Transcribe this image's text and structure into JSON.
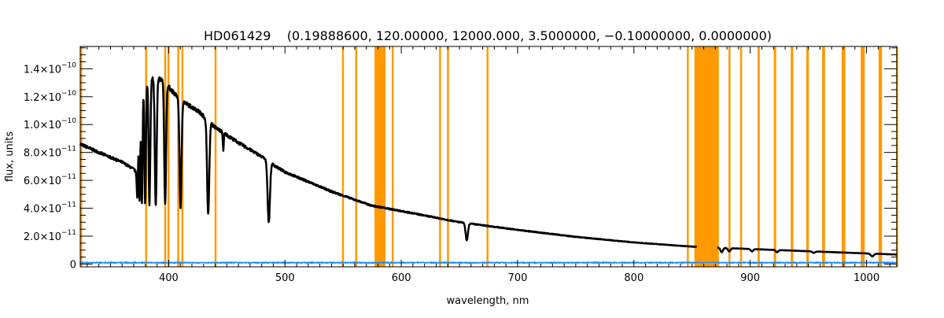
{
  "chart_data": {
    "type": "line",
    "title": "HD061429    (0.19888600, 120.00000, 12000.000, 3.5000000, −0.10000000, 0.0000000)",
    "xlabel": "wavelength, nm",
    "ylabel": "flux, units",
    "xlim": [
      324,
      1026
    ],
    "ylim": [
      -2e-12,
      1.56e-10
    ],
    "x_ticks": [
      400,
      500,
      600,
      700,
      800,
      900,
      1000
    ],
    "x_tick_labels": [
      "400",
      "500",
      "600",
      "700",
      "800",
      "900",
      "1000"
    ],
    "y_ticks": [
      0,
      2e-11,
      4e-11,
      6e-11,
      8e-11,
      1e-10,
      1.2e-10,
      1.4e-10
    ],
    "y_tick_labels": [
      {
        "mant": "0",
        "exp": ""
      },
      {
        "mant": "2.0×10",
        "exp": "−11"
      },
      {
        "mant": "4.0×10",
        "exp": "−11"
      },
      {
        "mant": "6.0×10",
        "exp": "−11"
      },
      {
        "mant": "8.0×10",
        "exp": "−11"
      },
      {
        "mant": "1.0×10",
        "exp": "−10"
      },
      {
        "mant": "1.2×10",
        "exp": "−10"
      },
      {
        "mant": "1.4×10",
        "exp": "−10"
      }
    ],
    "grid": false,
    "colors": {
      "spectrum": "#000000",
      "error": "#1a8cff",
      "mask": "#ff9900"
    },
    "continuum_1e-11": [
      [
        324,
        8.6
      ],
      [
        340,
        8.0
      ],
      [
        360,
        7.3
      ],
      [
        370,
        6.8
      ],
      [
        372,
        6.6
      ],
      [
        378,
        12.8
      ],
      [
        385,
        13.3
      ],
      [
        395,
        13.2
      ],
      [
        405,
        12.2
      ],
      [
        415,
        11.5
      ],
      [
        425,
        11.0
      ],
      [
        440,
        9.8
      ],
      [
        460,
        8.7
      ],
      [
        480,
        7.7
      ],
      [
        492,
        7.0
      ],
      [
        500,
        6.6
      ],
      [
        540,
        5.2
      ],
      [
        574,
        4.2
      ],
      [
        600,
        3.8
      ],
      [
        650,
        3.0
      ],
      [
        700,
        2.45
      ],
      [
        750,
        1.95
      ],
      [
        800,
        1.55
      ],
      [
        850,
        1.25
      ],
      [
        900,
        1.08
      ],
      [
        950,
        0.92
      ],
      [
        1000,
        0.76
      ],
      [
        1026,
        0.68
      ]
    ],
    "absorption_lines_1e-11": [
      [
        373,
        4.8,
        0.7
      ],
      [
        375,
        4.5,
        0.7
      ],
      [
        377,
        4.4,
        0.8
      ],
      [
        379.8,
        4.3,
        0.9
      ],
      [
        383.5,
        4.2,
        1.0
      ],
      [
        388.9,
        4.2,
        1.1
      ],
      [
        397,
        4.3,
        1.1
      ],
      [
        410.2,
        4.0,
        1.2
      ],
      [
        434,
        3.6,
        1.3
      ],
      [
        447,
        8.2,
        0.6
      ],
      [
        486.1,
        3.0,
        1.4
      ],
      [
        656.3,
        1.7,
        1.4
      ],
      [
        875.5,
        0.85,
        1.5
      ],
      [
        882,
        0.9,
        1.5
      ],
      [
        901.5,
        0.9,
        1.5
      ],
      [
        923,
        0.85,
        1.5
      ],
      [
        954.6,
        0.8,
        1.6
      ],
      [
        1004.9,
        0.55,
        1.8
      ]
    ],
    "spectrum_gaps_nm": [
      [
        854,
        872
      ]
    ],
    "error_level_1e-11": 0.1,
    "mask_bands_nm": [
      [
        324,
        325.5
      ],
      [
        379.8,
        380.8
      ],
      [
        396.2,
        397.2
      ],
      [
        399,
        400
      ],
      [
        407.4,
        408.6
      ],
      [
        411,
        412
      ],
      [
        439.5,
        440.6
      ],
      [
        549,
        550.6
      ],
      [
        560.4,
        561.6
      ],
      [
        577,
        586.5
      ],
      [
        591.8,
        593.2
      ],
      [
        632.5,
        633.7
      ],
      [
        639.3,
        640.6
      ],
      [
        673.3,
        674.7
      ],
      [
        845.5,
        847
      ],
      [
        852,
        873
      ],
      [
        881.3,
        883
      ],
      [
        891.3,
        893
      ],
      [
        906.3,
        908.2
      ],
      [
        920.2,
        922.3
      ],
      [
        934.8,
        937
      ],
      [
        948.2,
        950.4
      ],
      [
        961.8,
        964.3
      ],
      [
        978.6,
        981.8
      ],
      [
        995,
        998.4
      ],
      [
        1010.3,
        1013.3
      ],
      [
        1025.4,
        1026
      ]
    ]
  }
}
